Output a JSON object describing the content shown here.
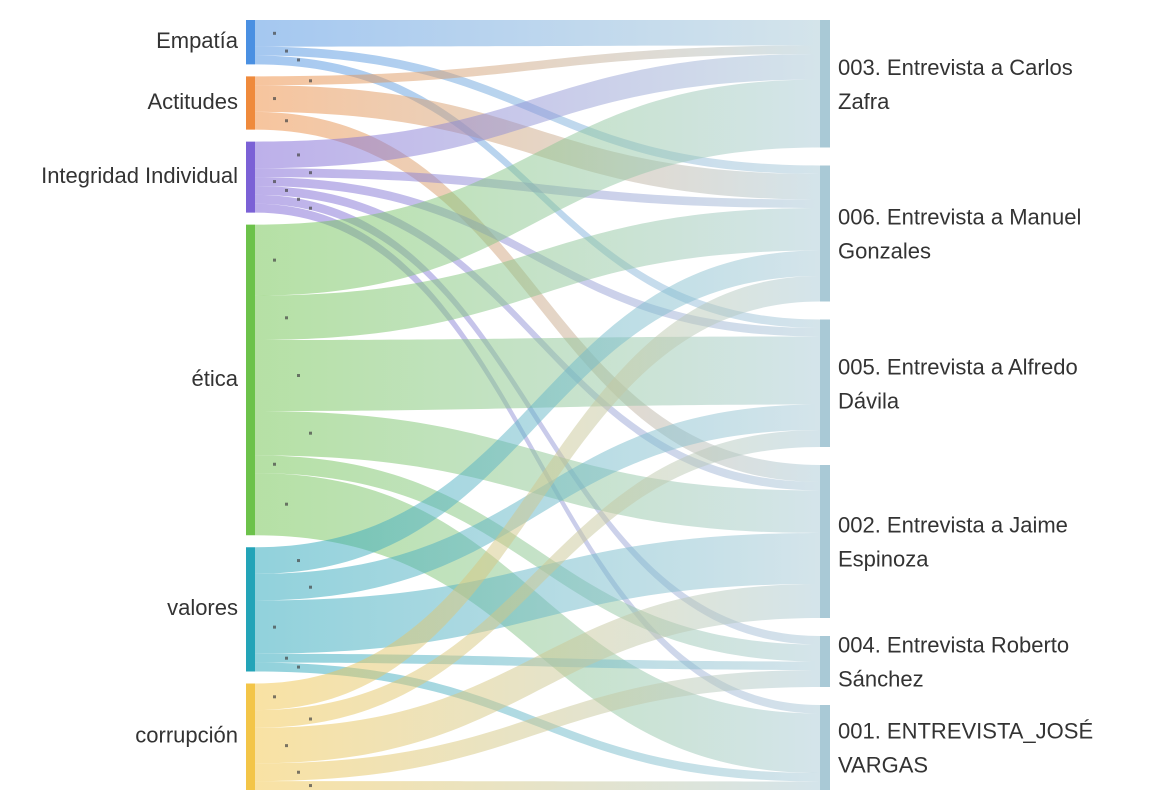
{
  "chart_data": {
    "type": "sankey",
    "title": "",
    "sources": [
      {
        "id": "empatia",
        "label": "Empatía",
        "color": "#4a90e2"
      },
      {
        "id": "actitudes",
        "label": "Actitudes",
        "color": "#ef8a3c"
      },
      {
        "id": "integridad",
        "label": "Integridad Individual",
        "color": "#7b61d6"
      },
      {
        "id": "etica",
        "label": "ética",
        "color": "#6cc24a"
      },
      {
        "id": "valores",
        "label": "valores",
        "color": "#23a4b8"
      },
      {
        "id": "corrupcion",
        "label": "corrupción",
        "color": "#f3c548"
      }
    ],
    "targets": [
      {
        "id": "e003",
        "label": "003. Entrevista a Carlos Zafra"
      },
      {
        "id": "e006",
        "label": "006. Entrevista a Manuel Gonzales"
      },
      {
        "id": "e005",
        "label": "005. Entrevista a Alfredo Dávila"
      },
      {
        "id": "e002",
        "label": "002. Entrevista a Jaime Espinoza"
      },
      {
        "id": "e004",
        "label": "004. Entrevista Roberto Sánchez"
      },
      {
        "id": "e001",
        "label": "001. ENTREVISTA_JOSÉ VARGAS"
      }
    ],
    "target_colors": {
      "fill": "#a9c9d6"
    },
    "links": [
      {
        "source": "empatia",
        "target": "e003",
        "value": 3
      },
      {
        "source": "empatia",
        "target": "e006",
        "value": 1
      },
      {
        "source": "empatia",
        "target": "e005",
        "value": 1
      },
      {
        "source": "actitudes",
        "target": "e003",
        "value": 1
      },
      {
        "source": "actitudes",
        "target": "e006",
        "value": 3
      },
      {
        "source": "actitudes",
        "target": "e002",
        "value": 2
      },
      {
        "source": "integridad",
        "target": "e003",
        "value": 3
      },
      {
        "source": "integridad",
        "target": "e006",
        "value": 1
      },
      {
        "source": "integridad",
        "target": "e005",
        "value": 1
      },
      {
        "source": "integridad",
        "target": "e002",
        "value": 1
      },
      {
        "source": "integridad",
        "target": "e004",
        "value": 1
      },
      {
        "source": "integridad",
        "target": "e001",
        "value": 1
      },
      {
        "source": "etica",
        "target": "e003",
        "value": 8
      },
      {
        "source": "etica",
        "target": "e006",
        "value": 5
      },
      {
        "source": "etica",
        "target": "e005",
        "value": 8
      },
      {
        "source": "etica",
        "target": "e002",
        "value": 5
      },
      {
        "source": "etica",
        "target": "e004",
        "value": 2
      },
      {
        "source": "etica",
        "target": "e001",
        "value": 7
      },
      {
        "source": "valores",
        "target": "e006",
        "value": 3
      },
      {
        "source": "valores",
        "target": "e005",
        "value": 3
      },
      {
        "source": "valores",
        "target": "e002",
        "value": 6
      },
      {
        "source": "valores",
        "target": "e004",
        "value": 1
      },
      {
        "source": "valores",
        "target": "e001",
        "value": 1
      },
      {
        "source": "corrupcion",
        "target": "e005",
        "value": 2
      },
      {
        "source": "corrupcion",
        "target": "e006",
        "value": 3
      },
      {
        "source": "corrupcion",
        "target": "e002",
        "value": 4
      },
      {
        "source": "corrupcion",
        "target": "e004",
        "value": 2
      },
      {
        "source": "corrupcion",
        "target": "e001",
        "value": 1
      }
    ]
  }
}
